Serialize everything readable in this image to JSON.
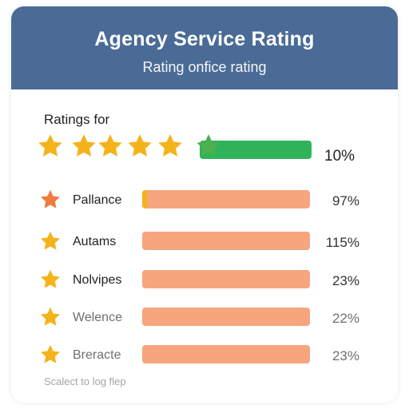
{
  "header": {
    "title": "Agency Service Rating",
    "subtitle": "Rating onfice rating"
  },
  "section_label": "Ratings for",
  "top_rating": {
    "stars": 5,
    "percent_text": "10%",
    "bar_color": "#2eb35a",
    "star_color": "#f5b31b",
    "accent_star_color": "#4caf50"
  },
  "rows": [
    {
      "label": "Pallance",
      "percent_text": "97%",
      "star_color": "#f07b3f",
      "fill_fraction": 0.03
    },
    {
      "label": "Autams",
      "percent_text": "115%",
      "star_color": "#f5b31b",
      "fill_fraction": 0
    },
    {
      "label": "Nolvipes",
      "percent_text": "23%",
      "star_color": "#f5b31b",
      "fill_fraction": 0
    },
    {
      "label": "Welence",
      "percent_text": "22%",
      "star_color": "#f5b31b",
      "fill_fraction": 0
    },
    {
      "label": "Breracte",
      "percent_text": "23%",
      "star_color": "#f5b31b",
      "fill_fraction": 0
    }
  ],
  "colors": {
    "header_bg": "#4a6b96",
    "row_bar": "#f6a57d",
    "row_fill": "#f5b31b"
  },
  "footer": {
    "text": "Scalect to log flep"
  }
}
